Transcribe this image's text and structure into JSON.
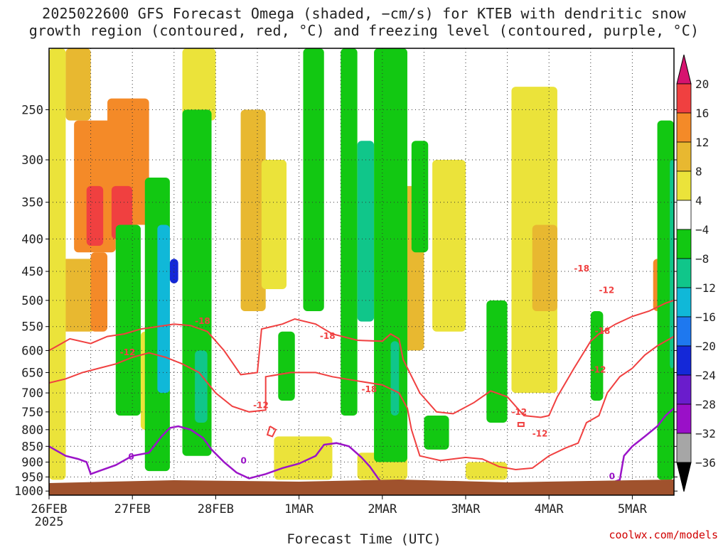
{
  "chart_data": {
    "type": "heatmap",
    "title_line1": "2025022600 GFS Forecast Omega (shaded, −cm/s) for KTEB with dendritic snow",
    "title_line2": "growth region (contoured, red, °C) and freezing level (contoured, purple, °C)",
    "xlabel": "Forecast Time (UTC)",
    "credit": "coolwx.com/models",
    "x_ticks": [
      "26FEB",
      "27FEB",
      "28FEB",
      "1MAR",
      "2MAR",
      "3MAR",
      "4MAR",
      "5MAR"
    ],
    "x_year": "2025",
    "y_ticks": [
      250,
      300,
      350,
      400,
      450,
      500,
      550,
      600,
      650,
      700,
      750,
      800,
      850,
      900,
      950,
      1000
    ],
    "y_axis": "pressure (hPa), reversed log scale",
    "ylim": [
      200,
      1015
    ],
    "xlim_days": [
      0,
      7.5
    ],
    "colorbar": {
      "levels": [
        20,
        16,
        12,
        8,
        4,
        -4,
        -8,
        -12,
        -16,
        -20,
        -24,
        -28,
        -32,
        -36
      ],
      "colors": [
        "#d6136f",
        "#f04040",
        "#f48a28",
        "#e8b830",
        "#ebe33a",
        "#ffffff",
        "#12c812",
        "#10c68a",
        "#10b8d8",
        "#1e78ef",
        "#1428d8",
        "#6a1ccc",
        "#9a10c8",
        "#a6a6a6",
        "#000000"
      ]
    },
    "contours": {
      "dgz_line_color": "#f04040",
      "freezing_line_color": "#9b14c8",
      "labels_dgz": [
        "-18",
        "-12",
        "-18",
        "-12",
        "-18",
        "-12",
        "-12",
        "-18",
        "-12",
        "-18",
        "-12"
      ],
      "labels_freezing": [
        "0",
        "0",
        "0"
      ]
    },
    "omega_cells": [
      [
        0.2,
        0.5,
        200,
        260,
        8
      ],
      [
        0.3,
        0.8,
        260,
        420,
        12
      ],
      [
        0.45,
        0.65,
        330,
        410,
        16
      ],
      [
        0.15,
        0.55,
        430,
        560,
        8
      ],
      [
        0.7,
        1.2,
        240,
        380,
        12
      ],
      [
        0.75,
        1.0,
        330,
        400,
        16
      ],
      [
        0.5,
        0.7,
        420,
        560,
        12
      ],
      [
        0.0,
        0.2,
        200,
        960,
        4
      ],
      [
        1.6,
        2.0,
        200,
        260,
        4
      ],
      [
        2.3,
        2.6,
        250,
        520,
        8
      ],
      [
        2.55,
        2.85,
        300,
        480,
        4
      ],
      [
        4.2,
        4.5,
        330,
        600,
        8
      ],
      [
        4.6,
        5.0,
        300,
        560,
        4
      ],
      [
        5.55,
        6.1,
        230,
        700,
        4
      ],
      [
        5.8,
        6.1,
        380,
        520,
        8
      ],
      [
        7.25,
        7.5,
        430,
        520,
        12
      ],
      [
        2.7,
        3.4,
        820,
        960,
        4
      ],
      [
        3.7,
        4.3,
        870,
        960,
        4
      ],
      [
        5.0,
        5.5,
        900,
        960,
        4
      ],
      [
        1.1,
        1.4,
        560,
        800,
        4
      ],
      [
        0.8,
        1.1,
        380,
        760,
        -8
      ],
      [
        1.15,
        1.45,
        320,
        930,
        -8
      ],
      [
        1.3,
        1.45,
        380,
        700,
        -16
      ],
      [
        1.45,
        1.55,
        430,
        470,
        -24
      ],
      [
        1.6,
        1.95,
        250,
        880,
        -8
      ],
      [
        1.75,
        1.9,
        600,
        780,
        -12
      ],
      [
        2.75,
        2.95,
        560,
        720,
        -8
      ],
      [
        3.05,
        3.3,
        200,
        520,
        -8
      ],
      [
        3.5,
        3.7,
        200,
        760,
        -8
      ],
      [
        3.7,
        3.9,
        280,
        540,
        -12
      ],
      [
        3.9,
        4.3,
        200,
        900,
        -8
      ],
      [
        4.1,
        4.2,
        580,
        760,
        -12
      ],
      [
        4.35,
        4.55,
        280,
        420,
        -8
      ],
      [
        4.5,
        4.8,
        760,
        860,
        -8
      ],
      [
        5.25,
        5.5,
        500,
        780,
        -8
      ],
      [
        6.5,
        6.65,
        520,
        720,
        -8
      ],
      [
        7.3,
        7.5,
        260,
        960,
        -8
      ],
      [
        7.45,
        7.5,
        300,
        640,
        -12
      ]
    ]
  }
}
